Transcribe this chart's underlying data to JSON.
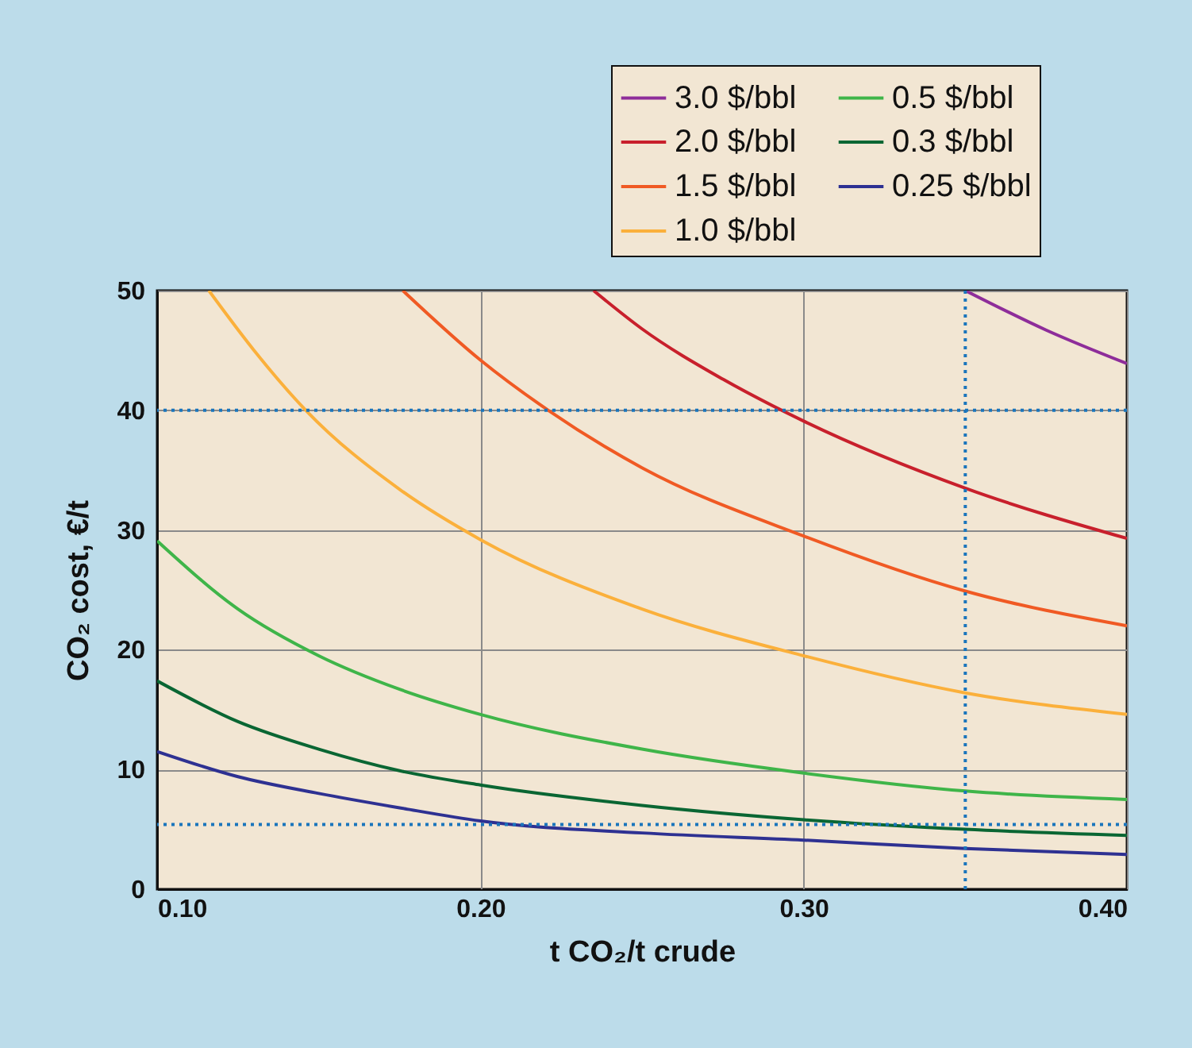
{
  "chart_data": {
    "type": "line",
    "xlabel": "t CO₂/t crude",
    "ylabel": "CO₂ cost, €/t",
    "xlim": [
      0.1,
      0.4
    ],
    "ylim": [
      0,
      50
    ],
    "xticks": [
      {
        "value": 0.1,
        "label": "0.10"
      },
      {
        "value": 0.2,
        "label": "0.20"
      },
      {
        "value": 0.3,
        "label": "0.30"
      },
      {
        "value": 0.4,
        "label": "0.40"
      }
    ],
    "yticks": [
      0,
      10,
      20,
      30,
      40,
      50
    ],
    "grid": true,
    "legend": "top right",
    "line_style": "solid",
    "series": [
      {
        "name": "3.0 $/bbl",
        "color": "#8e2d9a",
        "x": [
          0.35,
          0.375,
          0.4
        ],
        "values": [
          50,
          46.7,
          43.9
        ]
      },
      {
        "name": "2.0 $/bbl",
        "color": "#c8202c",
        "x": [
          0.235,
          0.25,
          0.275,
          0.3,
          0.35,
          0.4
        ],
        "values": [
          50,
          46.8,
          42.6,
          39.1,
          33.5,
          29.3
        ]
      },
      {
        "name": "1.5 $/bbl",
        "color": "#f05a24",
        "x": [
          0.176,
          0.2,
          0.221,
          0.25,
          0.3,
          0.35,
          0.4
        ],
        "values": [
          50,
          44.2,
          40,
          35.2,
          29.5,
          24.9,
          22.0
        ]
      },
      {
        "name": "1.0 $/bbl",
        "color": "#fbb03b",
        "x": [
          0.116,
          0.13,
          0.146,
          0.175,
          0.2,
          0.25,
          0.3,
          0.35,
          0.4
        ],
        "values": [
          50,
          45,
          40,
          33.4,
          29.2,
          23.4,
          19.5,
          16.4,
          14.6
        ]
      },
      {
        "name": "0.5 $/bbl",
        "color": "#3fb549",
        "x": [
          0.1,
          0.125,
          0.15,
          0.175,
          0.2,
          0.25,
          0.3,
          0.35,
          0.4
        ],
        "values": [
          29.1,
          23.4,
          19.5,
          16.7,
          14.6,
          11.7,
          9.7,
          8.2,
          7.5
        ]
      },
      {
        "name": "0.3 $/bbl",
        "color": "#0a6633",
        "x": [
          0.1,
          0.125,
          0.15,
          0.175,
          0.2,
          0.25,
          0.3,
          0.35,
          0.4
        ],
        "values": [
          17.4,
          14.0,
          11.7,
          9.9,
          8.7,
          7.0,
          5.8,
          5.0,
          4.5
        ]
      },
      {
        "name": "0.25 $/bbl",
        "color": "#2e3192",
        "x": [
          0.1,
          0.125,
          0.15,
          0.175,
          0.2,
          0.25,
          0.3,
          0.35,
          0.4
        ],
        "values": [
          11.5,
          9.4,
          8.0,
          6.8,
          5.7,
          4.7,
          4.1,
          3.4,
          2.9
        ]
      }
    ],
    "ref_lines": [
      {
        "axis": "x",
        "value": 0.35,
        "color": "#1a75bc",
        "line_style": "dotted"
      },
      {
        "axis": "y",
        "value": 40,
        "color": "#1a75bc",
        "line_style": "dotted"
      },
      {
        "axis": "y",
        "value": 5.4,
        "color": "#1a75bc",
        "line_style": "dotted"
      }
    ]
  }
}
